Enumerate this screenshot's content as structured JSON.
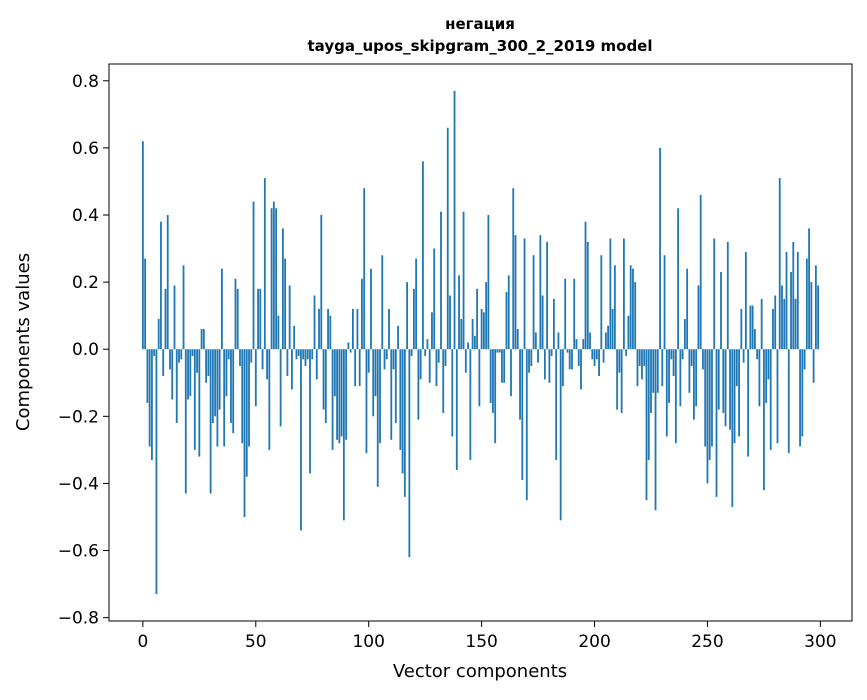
{
  "chart_data": {
    "type": "bar",
    "title": "негация",
    "subtitle": "tayga_upos_skipgram_300_2_2019 model",
    "xlabel": "Vector components",
    "ylabel": "Components values",
    "xlim": [
      -15,
      314
    ],
    "ylim": [
      -0.81,
      0.85
    ],
    "xticks": [
      0,
      50,
      100,
      150,
      200,
      250,
      300
    ],
    "xtick_labels": [
      "0",
      "50",
      "100",
      "150",
      "200",
      "250",
      "300"
    ],
    "yticks": [
      0.8,
      0.6,
      0.4,
      0.2,
      0.0,
      -0.2,
      -0.4,
      -0.6,
      -0.8
    ],
    "ytick_labels": [
      "0.8",
      "0.6",
      "0.4",
      "0.2",
      "0.0",
      "−0.2",
      "−0.4",
      "−0.6",
      "−0.8"
    ],
    "grid": false,
    "bar_color": "#1f77b4",
    "values": [
      0.62,
      0.27,
      -0.16,
      -0.29,
      -0.33,
      -0.02,
      -0.73,
      0.09,
      0.38,
      -0.08,
      0.18,
      0.4,
      -0.06,
      -0.15,
      0.19,
      -0.22,
      -0.04,
      -0.03,
      0.25,
      -0.43,
      -0.15,
      -0.14,
      -0.02,
      -0.3,
      -0.07,
      -0.32,
      0.06,
      0.06,
      -0.1,
      -0.08,
      -0.43,
      -0.22,
      -0.2,
      -0.29,
      -0.18,
      0.24,
      -0.29,
      -0.14,
      -0.03,
      -0.22,
      -0.25,
      0.21,
      0.18,
      -0.05,
      -0.28,
      -0.5,
      -0.38,
      -0.29,
      -0.04,
      0.44,
      -0.17,
      0.18,
      0.18,
      -0.06,
      0.51,
      -0.09,
      -0.3,
      0.42,
      0.44,
      0.42,
      0.1,
      -0.23,
      0.36,
      0.27,
      -0.08,
      0.19,
      -0.12,
      0.07,
      -0.03,
      -0.02,
      -0.54,
      -0.03,
      -0.05,
      -0.03,
      -0.37,
      -0.03,
      0.16,
      -0.09,
      0.12,
      0.4,
      -0.18,
      -0.22,
      0.12,
      0.1,
      -0.3,
      -0.14,
      -0.27,
      -0.28,
      -0.26,
      -0.51,
      -0.27,
      0.02,
      -0.01,
      0.12,
      -0.11,
      0.12,
      -0.11,
      0.21,
      0.48,
      -0.31,
      -0.07,
      0.24,
      -0.2,
      -0.14,
      -0.41,
      -0.28,
      0.28,
      -0.06,
      -0.03,
      0.12,
      -0.27,
      -0.06,
      -0.22,
      0.07,
      -0.3,
      -0.37,
      -0.44,
      0.2,
      -0.62,
      -0.02,
      0.18,
      0.27,
      -0.21,
      -0.09,
      0.56,
      -0.02,
      0.03,
      -0.1,
      0.11,
      0.3,
      -0.11,
      -0.04,
      0.41,
      -0.19,
      -0.05,
      0.66,
      0.16,
      -0.26,
      0.77,
      -0.36,
      0.22,
      0.09,
      0.41,
      -0.07,
      0.02,
      -0.33,
      0.09,
      0.04,
      0.18,
      -0.17,
      0.12,
      0.11,
      0.2,
      0.4,
      -0.16,
      -0.19,
      -0.28,
      -0.01,
      -0.01,
      -0.1,
      -0.1,
      0.17,
      0.22,
      -0.14,
      0.48,
      0.34,
      0.06,
      -0.21,
      -0.39,
      0.33,
      -0.45,
      -0.07,
      -0.05,
      0.28,
      0.05,
      -0.04,
      0.34,
      0.16,
      -0.09,
      0.32,
      -0.1,
      -0.02,
      0.15,
      -0.33,
      0.05,
      -0.51,
      -0.11,
      0.21,
      -0.01,
      -0.06,
      -0.06,
      0.21,
      0.03,
      -0.05,
      -0.12,
      0.03,
      0.38,
      0.32,
      0.05,
      -0.03,
      -0.05,
      -0.03,
      -0.08,
      0.28,
      -0.04,
      0.05,
      0.07,
      0.33,
      0.12,
      0.25,
      -0.18,
      -0.07,
      -0.19,
      0.33,
      -0.02,
      0.1,
      0.25,
      0.24,
      0.2,
      -0.11,
      -0.05,
      -0.09,
      -0.05,
      -0.45,
      -0.33,
      -0.19,
      -0.13,
      -0.48,
      -0.13,
      0.6,
      -0.11,
      0.28,
      -0.26,
      -0.16,
      -0.03,
      -0.08,
      -0.28,
      0.42,
      -0.17,
      -0.03,
      0.09,
      0.24,
      -0.13,
      -0.05,
      -0.21,
      -0.17,
      0.19,
      0.46,
      -0.06,
      -0.29,
      -0.4,
      -0.33,
      -0.29,
      0.33,
      -0.44,
      -0.18,
      0.23,
      -0.19,
      -0.23,
      0.32,
      -0.24,
      -0.47,
      -0.28,
      -0.11,
      -0.26,
      0.12,
      -0.04,
      0.29,
      -0.32,
      0.13,
      0.13,
      0.06,
      -0.03,
      -0.17,
      0.15,
      -0.42,
      -0.16,
      -0.09,
      -0.3,
      0.12,
      0.16,
      -0.28,
      0.51,
      0.19,
      0.15,
      0.29,
      -0.31,
      0.23,
      0.32,
      0.15,
      0.29,
      -0.29,
      -0.26,
      -0.06,
      0.27,
      0.36,
      0.2,
      -0.1,
      0.25,
      0.19
    ]
  }
}
